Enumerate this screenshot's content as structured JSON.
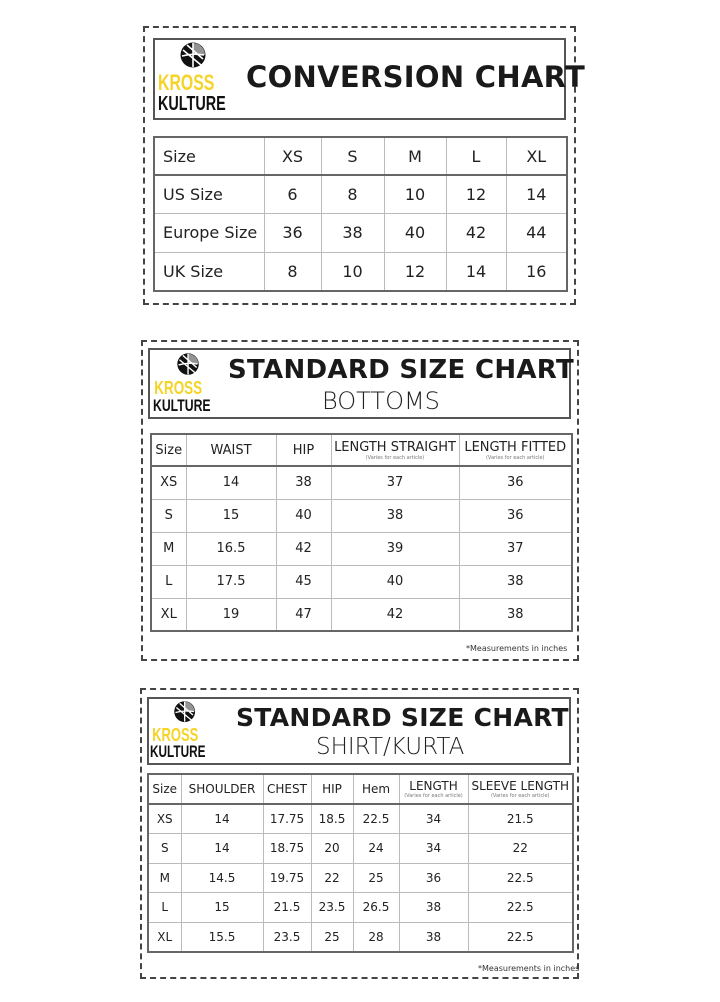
{
  "brand": {
    "line1": "KROSS",
    "line2": "KULTURE",
    "colors": {
      "kross": "#f5d327",
      "kulture": "#111111"
    }
  },
  "conversion": {
    "title": "CONVERSION CHART",
    "headers": [
      "Size",
      "XS",
      "S",
      "M",
      "L",
      "XL"
    ],
    "rows": [
      [
        "US Size",
        "6",
        "8",
        "10",
        "12",
        "14"
      ],
      [
        "Europe Size",
        "36",
        "38",
        "40",
        "42",
        "44"
      ],
      [
        "UK Size",
        "8",
        "10",
        "12",
        "14",
        "16"
      ]
    ]
  },
  "bottoms": {
    "title": "STANDARD SIZE CHART",
    "subtitle": "BOTTOMS",
    "headers": [
      "Size",
      "WAIST",
      "HIP",
      "LENGTH STRAIGHT",
      "LENGTH FITTED"
    ],
    "header_notes": [
      "",
      "",
      "",
      "(Varies for each article)",
      "(Varies for each article)"
    ],
    "rows": [
      [
        "XS",
        "14",
        "38",
        "37",
        "36"
      ],
      [
        "S",
        "15",
        "40",
        "38",
        "36"
      ],
      [
        "M",
        "16.5",
        "42",
        "39",
        "37"
      ],
      [
        "L",
        "17.5",
        "45",
        "40",
        "38"
      ],
      [
        "XL",
        "19",
        "47",
        "42",
        "38"
      ]
    ],
    "note": "*Measurements in inches"
  },
  "shirt": {
    "title": "STANDARD SIZE CHART",
    "subtitle": "SHIRT/KURTA",
    "headers": [
      "Size",
      "SHOULDER",
      "CHEST",
      "HIP",
      "Hem",
      "LENGTH",
      "SLEEVE LENGTH"
    ],
    "header_notes": [
      "",
      "",
      "",
      "",
      "",
      "(Varies for each article)",
      "(Varies for each article)"
    ],
    "rows": [
      [
        "XS",
        "14",
        "17.75",
        "18.5",
        "22.5",
        "34",
        "21.5"
      ],
      [
        "S",
        "14",
        "18.75",
        "20",
        "24",
        "34",
        "22"
      ],
      [
        "M",
        "14.5",
        "19.75",
        "22",
        "25",
        "36",
        "22.5"
      ],
      [
        "L",
        "15",
        "21.5",
        "23.5",
        "26.5",
        "38",
        "22.5"
      ],
      [
        "XL",
        "15.5",
        "23.5",
        "25",
        "28",
        "38",
        "22.5"
      ]
    ],
    "note": "*Measurements in inches"
  }
}
